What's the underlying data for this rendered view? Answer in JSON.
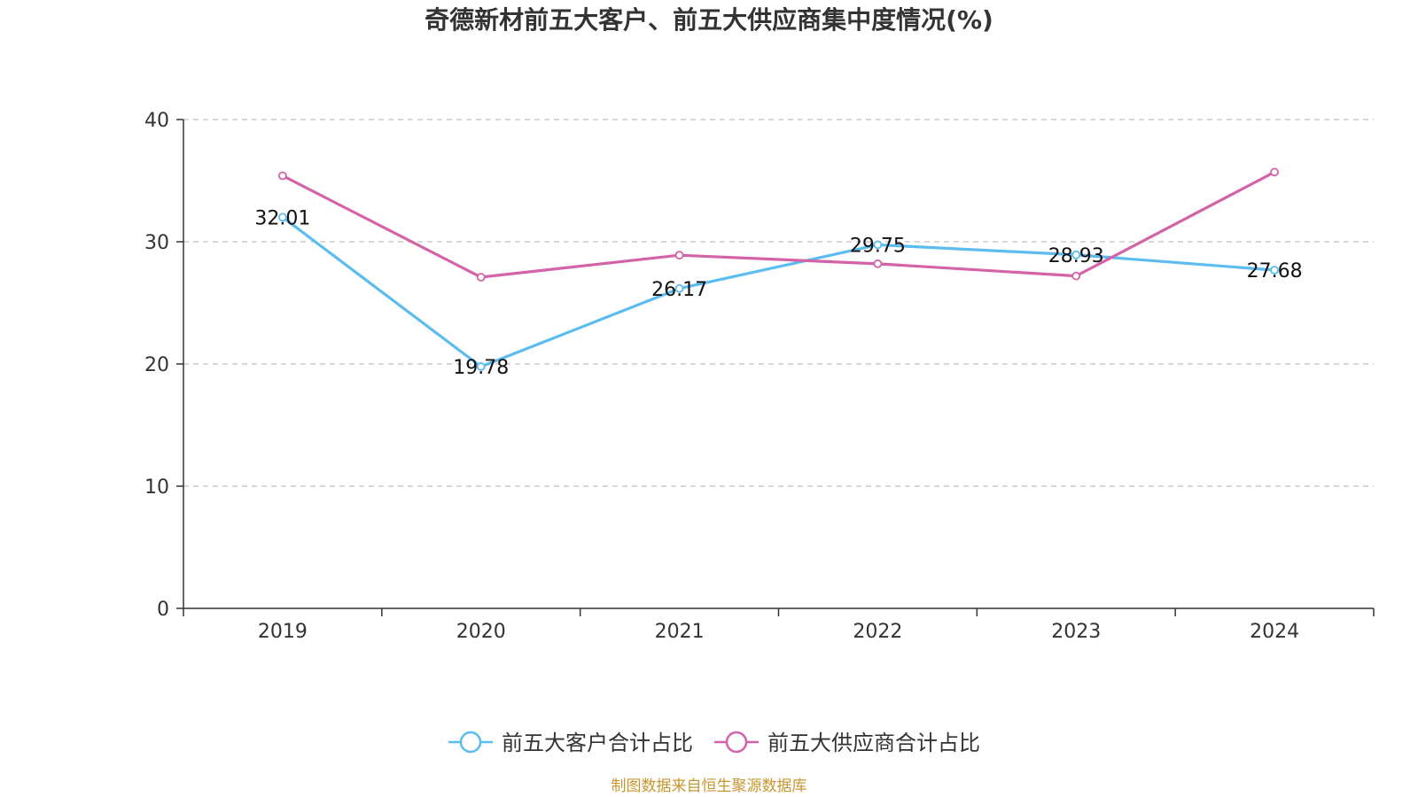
{
  "chart_data": {
    "type": "line",
    "title": "奇德新材前五大客户、前五大供应商集中度情况(%)",
    "xlabel": "",
    "ylabel": "",
    "categories": [
      "2019",
      "2020",
      "2021",
      "2022",
      "2023",
      "2024"
    ],
    "ylim": [
      0,
      40
    ],
    "yticks": [
      0,
      10,
      20,
      30,
      40
    ],
    "grid": true,
    "legend_position": "bottom",
    "series": [
      {
        "name": "前五大客户合计占比",
        "color": "#5bbcf0",
        "values": [
          32.01,
          19.78,
          26.17,
          29.75,
          28.93,
          27.68
        ],
        "labels": [
          "32.01",
          "19.78",
          "26.17",
          "29.75",
          "28.93",
          "27.68"
        ]
      },
      {
        "name": "前五大供应商合计占比",
        "color": "#d462a8",
        "values": [
          35.4,
          27.1,
          28.9,
          28.2,
          27.2,
          35.7
        ],
        "labels": []
      }
    ]
  },
  "source": "制图数据来自恒生聚源数据库"
}
